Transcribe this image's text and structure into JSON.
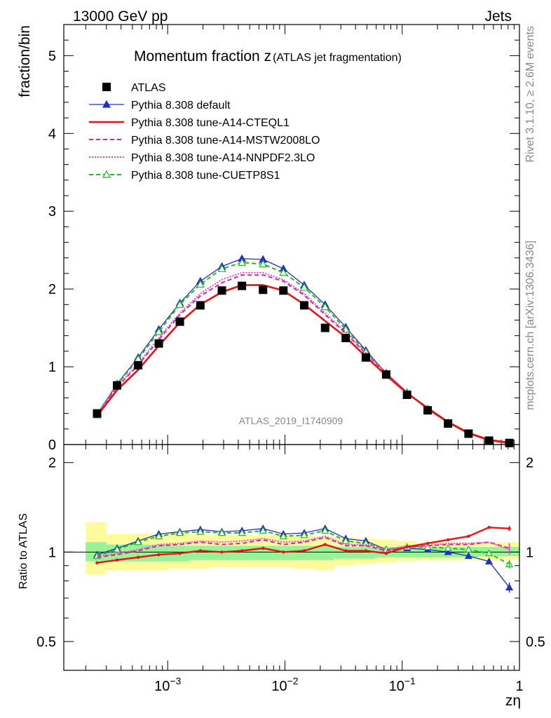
{
  "header": {
    "left": "13000 GeV pp",
    "right": "Jets"
  },
  "side_labels": {
    "rivet": "Rivet 3.1.10, ≥ 2.6M events",
    "source": "mcplots.cern.ch [arXiv:1306.3436]"
  },
  "chart_data": {
    "type": "line",
    "title_main": "Momentum fraction z",
    "title_sub": "(ATLAS jet fragmentation)",
    "xlabel": "zη",
    "ylabel": "fraction/bin",
    "ratio_ylabel": "Ratio to ATLAS",
    "watermark": "ATLAS_2019_I1740909",
    "x_scale": "log",
    "xlim": [
      0.00013,
      1
    ],
    "ylim": [
      0,
      5.4
    ],
    "ratio_ylim": [
      0.4,
      2.3
    ],
    "ratio_scale": "log",
    "x_tick_labels": [
      {
        "base": "10",
        "exp": "−3",
        "x": 0.001
      },
      {
        "base": "10",
        "exp": "−2",
        "x": 0.01
      },
      {
        "base": "10",
        "exp": "−1",
        "x": 0.1
      },
      {
        "base": "1",
        "exp": "",
        "x": 1
      }
    ],
    "y_tick_labels": [
      {
        "v": 0,
        "label": "0"
      },
      {
        "v": 1,
        "label": "1"
      },
      {
        "v": 2,
        "label": "2"
      },
      {
        "v": 3,
        "label": "3"
      },
      {
        "v": 4,
        "label": "4"
      },
      {
        "v": 5,
        "label": "5"
      }
    ],
    "ratio_tick_labels": [
      {
        "v": 0.5,
        "label": "0.5"
      },
      {
        "v": 1,
        "label": "1"
      },
      {
        "v": 2,
        "label": "2"
      }
    ],
    "legend_position": "top-left",
    "x": [
      0.00025,
      0.00037,
      0.00056,
      0.00084,
      0.00127,
      0.0019,
      0.0029,
      0.0043,
      0.0065,
      0.0097,
      0.0146,
      0.022,
      0.033,
      0.049,
      0.073,
      0.11,
      0.165,
      0.246,
      0.368,
      0.55,
      0.82
    ],
    "bin_edges": [
      0.0002,
      0.0003,
      0.00045,
      0.00068,
      0.00102,
      0.00153,
      0.0023,
      0.0035,
      0.0052,
      0.0078,
      0.0117,
      0.0175,
      0.0263,
      0.0395,
      0.059,
      0.088,
      0.132,
      0.198,
      0.297,
      0.445,
      0.67,
      1.0
    ],
    "ratio_band_green": [
      [
        0.93,
        1.08
      ],
      [
        0.93,
        1.06
      ],
      [
        0.93,
        1.06
      ],
      [
        0.93,
        1.06
      ],
      [
        0.93,
        1.05
      ],
      [
        0.94,
        1.05
      ],
      [
        0.94,
        1.05
      ],
      [
        0.94,
        1.05
      ],
      [
        0.94,
        1.05
      ],
      [
        0.94,
        1.05
      ],
      [
        0.94,
        1.05
      ],
      [
        0.94,
        1.05
      ],
      [
        0.95,
        1.04
      ],
      [
        0.95,
        1.04
      ],
      [
        0.96,
        1.04
      ],
      [
        0.96,
        1.04
      ],
      [
        0.96,
        1.04
      ],
      [
        0.96,
        1.04
      ],
      [
        0.96,
        1.04
      ],
      [
        0.97,
        1.04
      ],
      [
        0.97,
        1.04
      ]
    ],
    "ratio_band_yellow": [
      [
        0.84,
        1.26
      ],
      [
        0.87,
        1.15
      ],
      [
        0.87,
        1.15
      ],
      [
        0.87,
        1.15
      ],
      [
        0.88,
        1.16
      ],
      [
        0.88,
        1.15
      ],
      [
        0.89,
        1.14
      ],
      [
        0.89,
        1.14
      ],
      [
        0.89,
        1.14
      ],
      [
        0.89,
        1.14
      ],
      [
        0.88,
        1.14
      ],
      [
        0.87,
        1.13
      ],
      [
        0.9,
        1.12
      ],
      [
        0.91,
        1.11
      ],
      [
        0.92,
        1.1
      ],
      [
        0.93,
        1.09
      ],
      [
        0.94,
        1.08
      ],
      [
        0.94,
        1.08
      ],
      [
        0.94,
        1.08
      ],
      [
        0.94,
        1.08
      ],
      [
        0.94,
        1.08
      ]
    ],
    "series": [
      {
        "name": "ATLAS",
        "color": "#000000",
        "style": "data",
        "values": [
          0.4,
          0.76,
          1.02,
          1.3,
          1.58,
          1.79,
          1.98,
          2.04,
          1.99,
          1.98,
          1.79,
          1.5,
          1.37,
          1.12,
          0.9,
          0.64,
          0.44,
          0.27,
          0.14,
          0.05,
          0.02
        ]
      },
      {
        "name": "Pythia 8.308 default",
        "color": "#1f2fc8",
        "style": "solid-triangle",
        "values": [
          0.39,
          0.78,
          1.12,
          1.48,
          1.82,
          2.1,
          2.29,
          2.39,
          2.38,
          2.26,
          2.05,
          1.8,
          1.51,
          1.21,
          0.92,
          0.67,
          0.45,
          0.28,
          0.14,
          0.05,
          0.015
        ],
        "ratio": [
          0.98,
          1.03,
          1.09,
          1.15,
          1.17,
          1.19,
          1.17,
          1.18,
          1.2,
          1.15,
          1.16,
          1.2,
          1.11,
          1.09,
          1.02,
          1.03,
          1.02,
          1.0,
          0.97,
          0.93,
          0.76
        ]
      },
      {
        "name": "Pythia 8.308 tune-A14-CTEQL1",
        "color": "#ee1111",
        "style": "solid",
        "values": [
          0.37,
          0.7,
          0.96,
          1.27,
          1.57,
          1.8,
          1.96,
          2.05,
          2.05,
          1.98,
          1.8,
          1.59,
          1.38,
          1.13,
          0.89,
          0.66,
          0.47,
          0.29,
          0.15,
          0.06,
          0.024
        ],
        "ratio": [
          0.92,
          0.94,
          0.96,
          0.98,
          0.99,
          1.01,
          1.0,
          1.01,
          1.03,
          1.0,
          1.01,
          1.06,
          1.01,
          1.01,
          0.99,
          1.04,
          1.07,
          1.1,
          1.13,
          1.21,
          1.2
        ]
      },
      {
        "name": "Pythia 8.308 tune-A14-MSTW2008LO",
        "color": "#e0209a",
        "style": "dashed",
        "values": [
          0.38,
          0.74,
          1.02,
          1.35,
          1.67,
          1.91,
          2.08,
          2.18,
          2.18,
          2.1,
          1.92,
          1.67,
          1.43,
          1.17,
          0.91,
          0.67,
          0.46,
          0.29,
          0.15,
          0.055,
          0.02
        ],
        "ratio": [
          0.96,
          0.98,
          1.01,
          1.05,
          1.06,
          1.08,
          1.06,
          1.07,
          1.1,
          1.06,
          1.08,
          1.12,
          1.05,
          1.05,
          1.01,
          1.04,
          1.05,
          1.06,
          1.06,
          1.08,
          1.03
        ]
      },
      {
        "name": "Pythia 8.308 tune-A14-NNPDF2.3LO",
        "color": "#ee44dd",
        "style": "dotted",
        "values": [
          0.38,
          0.75,
          1.04,
          1.37,
          1.69,
          1.94,
          2.12,
          2.21,
          2.21,
          2.12,
          1.94,
          1.69,
          1.45,
          1.18,
          0.92,
          0.67,
          0.46,
          0.29,
          0.15,
          0.055,
          0.02
        ],
        "ratio": [
          0.97,
          0.99,
          1.02,
          1.06,
          1.07,
          1.09,
          1.08,
          1.09,
          1.11,
          1.08,
          1.09,
          1.13,
          1.06,
          1.06,
          1.02,
          1.05,
          1.05,
          1.07,
          1.07,
          1.08,
          1.02
        ]
      },
      {
        "name": "Pythia 8.308 tune-CUETP8S1",
        "color": "#22bb22",
        "style": "dashed-triangle-open",
        "values": [
          0.38,
          0.77,
          1.1,
          1.45,
          1.8,
          2.06,
          2.26,
          2.34,
          2.32,
          2.21,
          2.02,
          1.77,
          1.48,
          1.19,
          0.92,
          0.67,
          0.46,
          0.28,
          0.14,
          0.05,
          0.018
        ],
        "ratio": [
          0.97,
          1.02,
          1.08,
          1.13,
          1.16,
          1.17,
          1.16,
          1.16,
          1.18,
          1.13,
          1.14,
          1.18,
          1.09,
          1.07,
          1.02,
          1.04,
          1.04,
          1.03,
          1.02,
          0.99,
          0.91
        ]
      }
    ]
  }
}
